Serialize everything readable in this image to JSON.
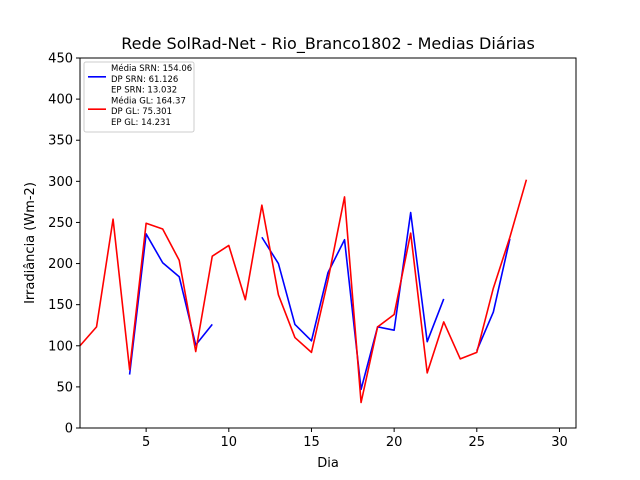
{
  "chart_data": {
    "type": "line",
    "title": "Rede SolRad-Net - Rio_Branco1802 - Medias Diárias",
    "xlabel": "Dia",
    "ylabel": "Irradiância (Wm-2)",
    "xlim": [
      1,
      31
    ],
    "ylim": [
      0,
      450
    ],
    "xticks": [
      5,
      10,
      15,
      20,
      25,
      30
    ],
    "yticks": [
      0,
      50,
      100,
      150,
      200,
      250,
      300,
      350,
      400,
      450
    ],
    "grid": false,
    "legend_position": "top-left",
    "series": [
      {
        "color": "#0000ff",
        "x": [
          4,
          5,
          6,
          7,
          8,
          9,
          null,
          12,
          13,
          14,
          15,
          16,
          17,
          18,
          19,
          20,
          21,
          22,
          23,
          null,
          25,
          26,
          27
        ],
        "y": [
          65,
          236,
          201,
          184,
          101,
          126,
          null,
          232,
          200,
          126,
          106,
          189,
          229,
          47,
          123,
          119,
          262,
          105,
          157,
          null,
          94,
          141,
          230
        ]
      },
      {
        "color": "#ff0000",
        "x": [
          1,
          2,
          3,
          4,
          5,
          6,
          7,
          8,
          9,
          10,
          11,
          12,
          13,
          14,
          15,
          16,
          17,
          18,
          19,
          20,
          21,
          22,
          23,
          24,
          25,
          26,
          27,
          28
        ],
        "y": [
          100,
          123,
          254,
          71,
          249,
          242,
          204,
          93,
          209,
          222,
          156,
          271,
          162,
          110,
          92,
          180,
          281,
          31,
          123,
          138,
          237,
          67,
          129,
          84,
          92,
          170,
          232,
          302
        ]
      }
    ],
    "legend": [
      {
        "color": "#0000ff",
        "lines": [
          "Média SRN: 154.06",
          "DP SRN: 61.126",
          "EP SRN: 13.032"
        ]
      },
      {
        "color": "#ff0000",
        "lines": [
          "Média GL: 164.37",
          "DP GL: 75.301",
          "EP GL: 14.231"
        ]
      }
    ]
  }
}
